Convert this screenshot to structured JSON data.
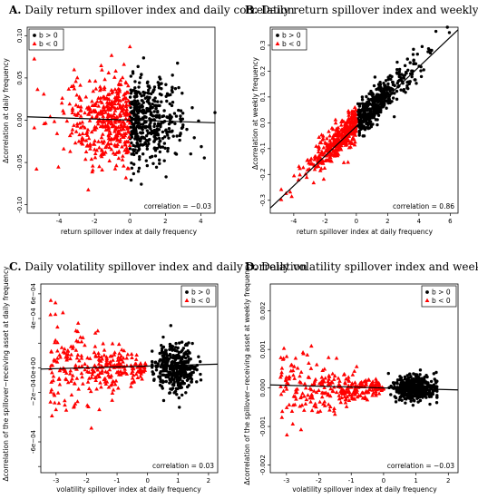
{
  "chart_data": [
    {
      "type": "scatter",
      "panel": "A.",
      "title": "Daily return spillover index and daily correlation",
      "xlabel": "return spillover index at daily frequency",
      "ylabel": "Δcorrelation at daily frequency",
      "xlim": [
        -5.8,
        4.8
      ],
      "ylim": [
        -0.11,
        0.11
      ],
      "xticks": [
        -4,
        -2,
        0,
        2,
        4
      ],
      "yticks": [
        -0.1,
        -0.05,
        0.0,
        0.05,
        0.1
      ],
      "ytick_labels": [
        "-0.10",
        "-0.05",
        "0.00",
        "0.05",
        "0.10"
      ],
      "legend": {
        "position": "top-left",
        "entries": [
          "b > 0",
          "b < 0"
        ]
      },
      "annotation": "correlation = −0.03",
      "fit_line": [
        [
          -5.8,
          0.004
        ],
        [
          4.8,
          -0.003
        ]
      ],
      "cluster_summary": [
        {
          "series": "b > 0",
          "x_range": [
            0,
            4.8
          ],
          "y_center": 0.0,
          "y_spread": 0.045
        },
        {
          "series": "b < 0",
          "x_range": [
            -5.4,
            0
          ],
          "y_center": 0.0,
          "y_spread": 0.05
        }
      ]
    },
    {
      "type": "scatter",
      "panel": "B.",
      "title": "Daily return spillover index and weekly correlation",
      "xlabel": "return spillover index at daily frequency",
      "ylabel": "Δcorrelation at weekly frequency",
      "xlim": [
        -5.5,
        6.5
      ],
      "ylim": [
        -0.35,
        0.37
      ],
      "xticks": [
        -4,
        -2,
        0,
        2,
        4,
        6
      ],
      "yticks": [
        -0.3,
        -0.2,
        -0.1,
        0.0,
        0.1,
        0.2,
        0.3
      ],
      "ytick_labels": [
        "-0.3",
        "-0.2",
        "-0.1",
        "0.0",
        "0.1",
        "0.2",
        "0.3"
      ],
      "legend": {
        "position": "top-left",
        "entries": [
          "b > 0",
          "b < 0"
        ]
      },
      "annotation": "correlation = 0.86",
      "fit_line": [
        [
          -5.5,
          -0.33
        ],
        [
          6.5,
          0.36
        ]
      ],
      "cluster_summary": [
        {
          "series": "b > 0",
          "x_range": [
            0,
            6
          ],
          "slope": 0.058,
          "intercept": 0.0,
          "y_spread": 0.06
        },
        {
          "series": "b < 0",
          "x_range": [
            -4.8,
            0
          ],
          "slope": 0.058,
          "intercept": 0.0,
          "y_spread": 0.06
        }
      ]
    },
    {
      "type": "scatter",
      "panel": "C.",
      "title": "Daily volatility spillover index and daily correlation",
      "xlabel": "volatility spillover index at daily frequency",
      "ylabel": "Δcorrelation of the spillover−receiving asset at daily frequency",
      "xlim": [
        -3.5,
        2.3
      ],
      "ylim": [
        -0.00085,
        0.00068
      ],
      "xticks": [
        -3,
        -2,
        -1,
        0,
        1,
        2
      ],
      "yticks": [
        -0.0008,
        -0.0006,
        -0.0004,
        -0.0002,
        0.0,
        0.0002,
        0.0004,
        0.0006
      ],
      "ytick_labels": [
        "",
        "-6e−04",
        "",
        "−2e−04",
        "0e+00",
        "",
        "4e−04",
        "6e−04"
      ],
      "legend": {
        "position": "top-right",
        "entries": [
          "b > 0",
          "b < 0"
        ]
      },
      "annotation": "correlation = 0.03",
      "fit_line": [
        [
          -3.5,
          -1e-05
        ],
        [
          2.3,
          3e-05
        ]
      ],
      "cluster_summary": [
        {
          "series": "b > 0",
          "x_range": [
            0.2,
            1.7
          ],
          "y_center": 0.0,
          "y_spread": 0.00018
        },
        {
          "series": "b < 0",
          "x_range": [
            -3.2,
            0
          ],
          "y_center": 0.0,
          "y_spread": 0.00025
        }
      ]
    },
    {
      "type": "scatter",
      "panel": "D.",
      "title": "Daily volatility spillover index and weekly correlation",
      "xlabel": "volatility spillover index at daily frequency",
      "ylabel": "Δcorrelation of the spillover−receiving asset at weekly frequency",
      "xlim": [
        -3.5,
        2.3
      ],
      "ylim": [
        -0.0022,
        0.0027
      ],
      "xticks": [
        -3,
        -2,
        -1,
        0,
        1,
        2
      ],
      "yticks": [
        -0.002,
        -0.001,
        0.0,
        0.001,
        0.002
      ],
      "ytick_labels": [
        "-0.002",
        "-0.001",
        "0.000",
        "0.001",
        "0.002"
      ],
      "legend": {
        "position": "top-right",
        "entries": [
          "b > 0",
          "b < 0"
        ]
      },
      "annotation": "correlation = −0.03",
      "fit_line": [
        [
          -3.5,
          8e-05
        ],
        [
          2.3,
          -5e-05
        ]
      ],
      "cluster_summary": [
        {
          "series": "b > 0",
          "x_range": [
            0.2,
            1.6
          ],
          "y_center": 0.0,
          "y_spread": 0.00035
        },
        {
          "series": "b < 0",
          "x_range": [
            -3.2,
            0
          ],
          "y_center": 0.0,
          "y_spread": 0.00065
        }
      ]
    }
  ],
  "colors": {
    "b_pos": "#000000",
    "b_neg": "#ff0000",
    "line": "#000000"
  }
}
